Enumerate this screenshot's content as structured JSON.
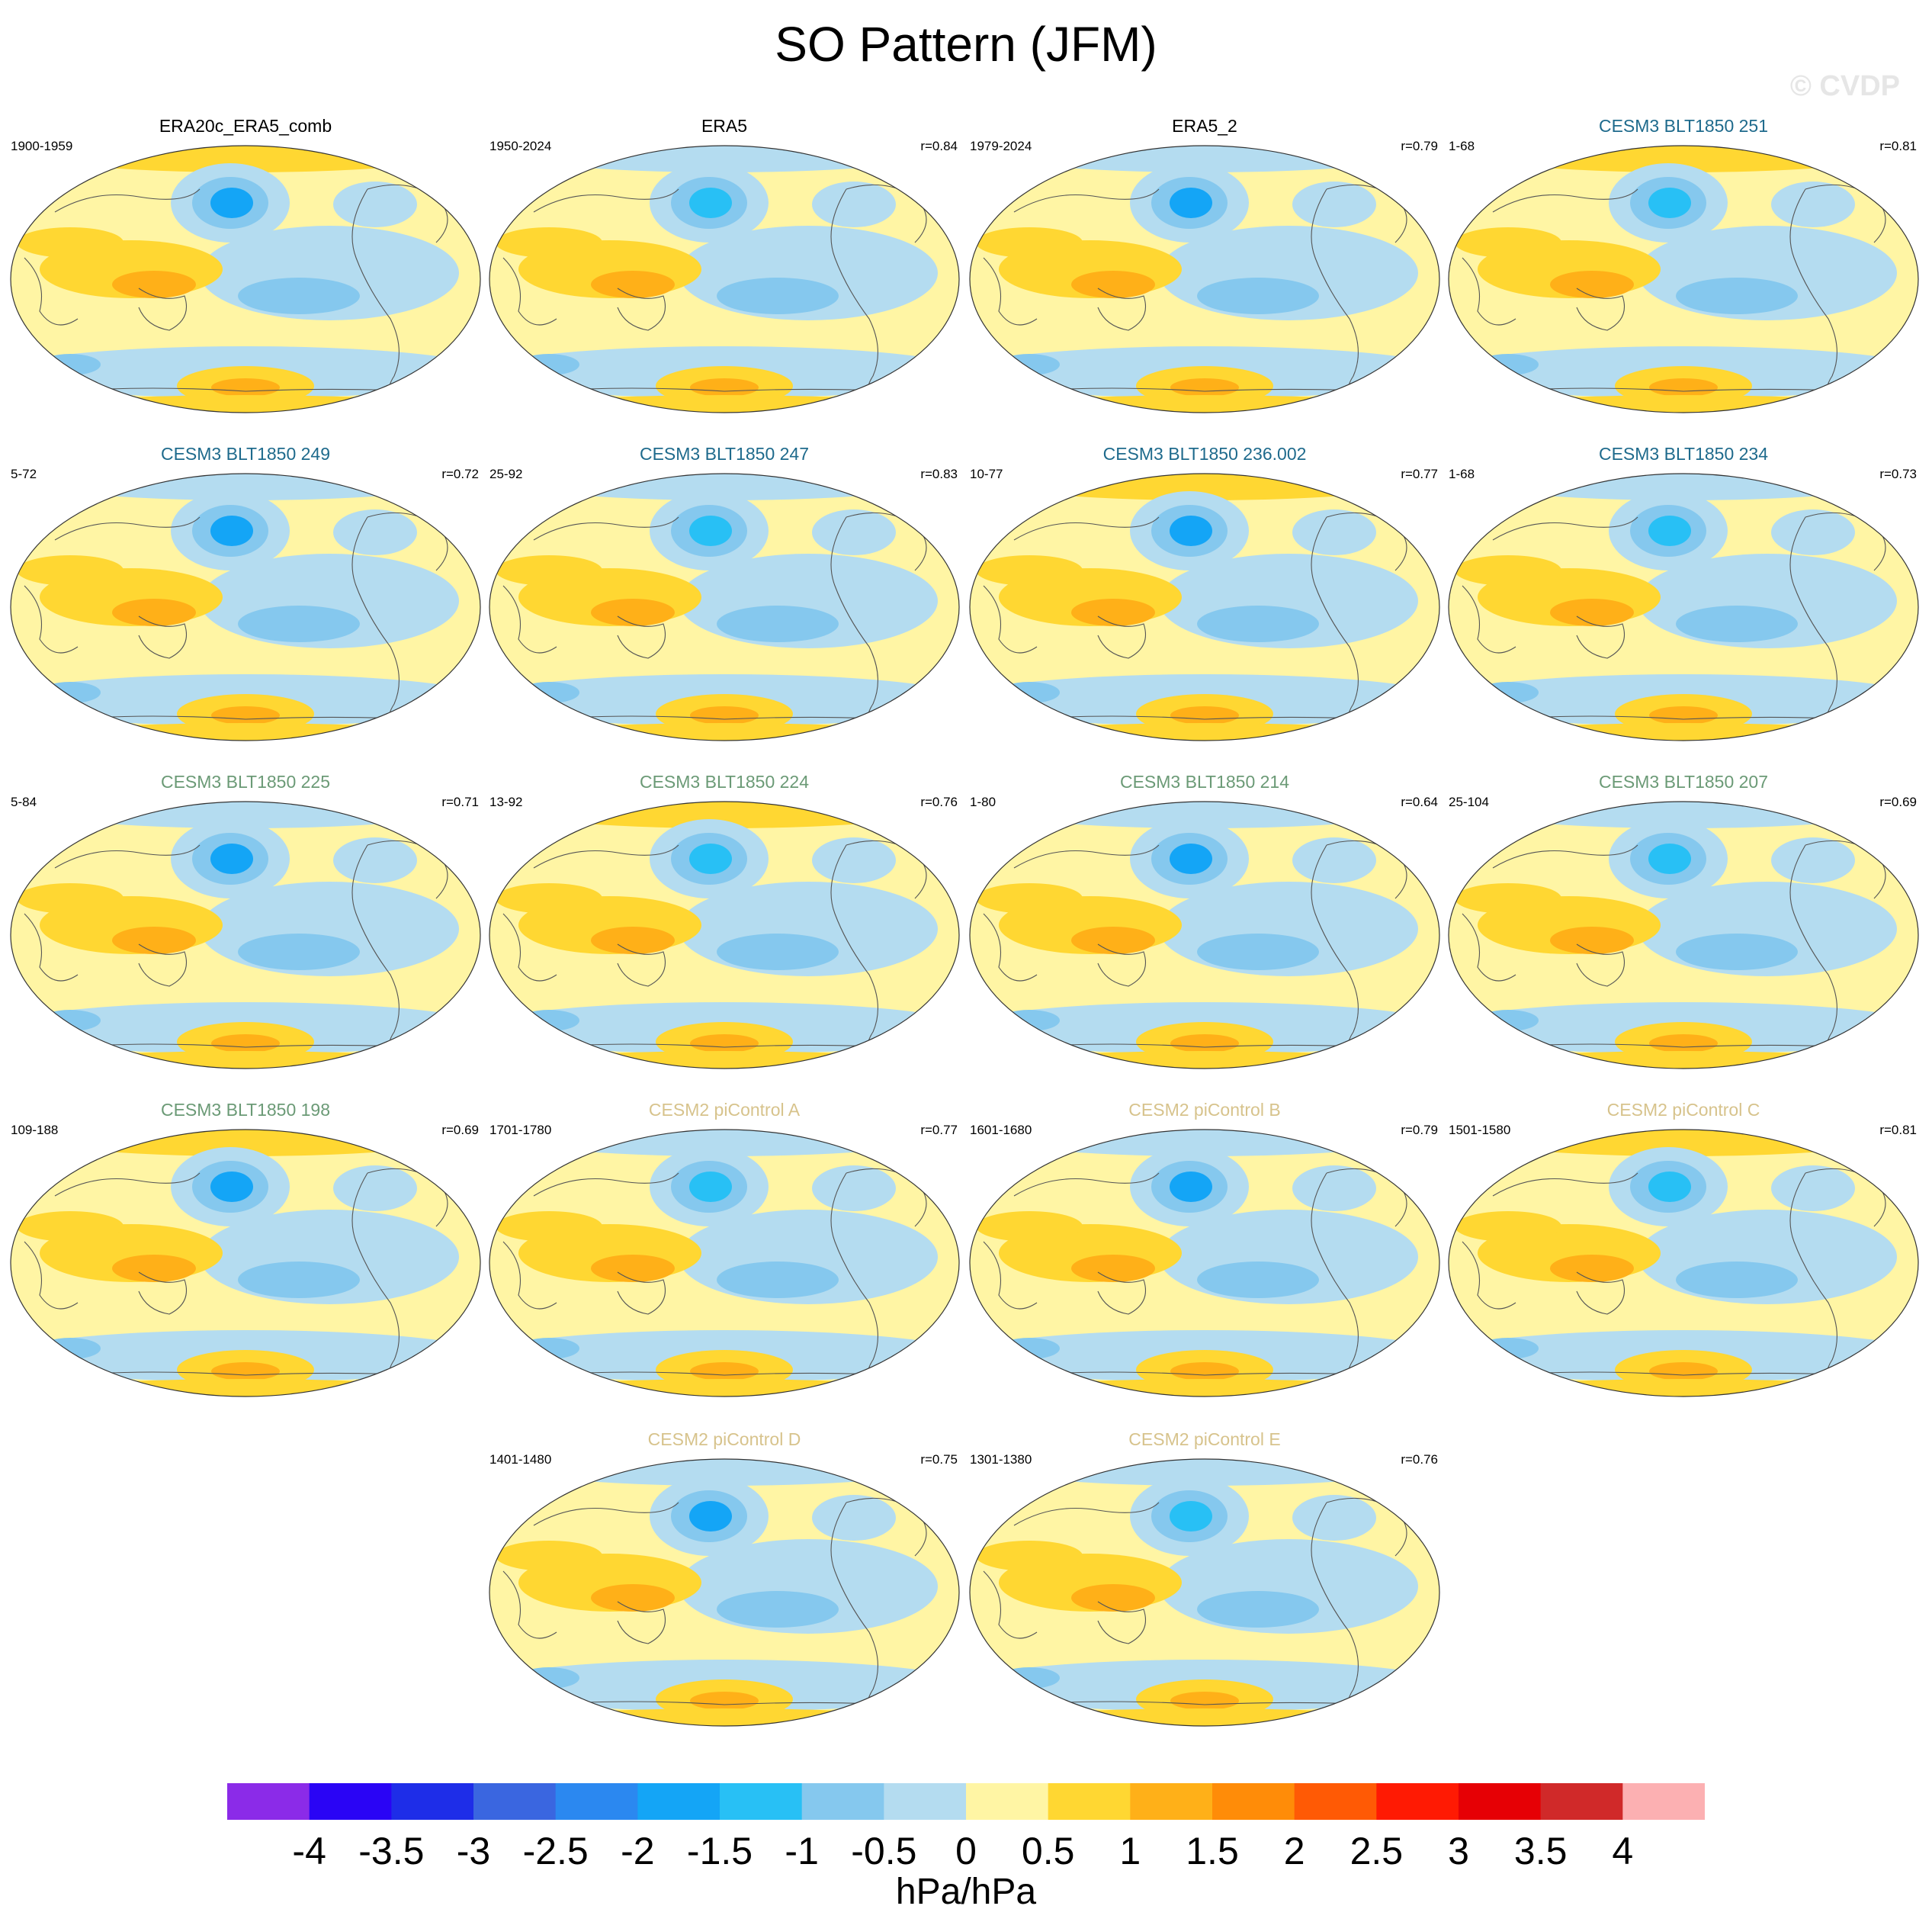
{
  "title": "SO Pattern (JFM)",
  "watermark": "© CVDP",
  "colors": {
    "obs_title": "#000000",
    "cesm3_a": "#1e6a8c",
    "cesm3_b": "#6b9a76",
    "cesm2": "#d7c38c"
  },
  "chart_data": {
    "type": "heatmap",
    "title": "SO Pattern (JFM)",
    "colorbar": {
      "units": "hPa/hPa",
      "levels": [
        "-4",
        "-3.5",
        "-3",
        "-2.5",
        "-2",
        "-1.5",
        "-1",
        "-0.5",
        "0",
        "0.5",
        "1",
        "1.5",
        "2",
        "2.5",
        "3",
        "3.5",
        "4"
      ],
      "colors": [
        "#8b2be8",
        "#2a04f5",
        "#1e2de8",
        "#3a66e0",
        "#2b88f0",
        "#14a5f6",
        "#28c0f5",
        "#85c8ee",
        "#b4dcf0",
        "#fff5a4",
        "#ffd732",
        "#ffb018",
        "#ff8c08",
        "#ff5a05",
        "#ff1a03",
        "#e60005",
        "#d02929",
        "#fcb0b2"
      ]
    },
    "panels": [
      {
        "title": "ERA20c_ERA5_comb",
        "years": "1900-1959",
        "r": "",
        "group": "obs"
      },
      {
        "title": "ERA5",
        "years": "1950-2024",
        "r": "r=0.84",
        "group": "obs"
      },
      {
        "title": "ERA5_2",
        "years": "1979-2024",
        "r": "r=0.79",
        "group": "obs"
      },
      {
        "title": "CESM3 BLT1850 251",
        "years": "1-68",
        "r": "r=0.81",
        "group": "cesm3_a"
      },
      {
        "title": "CESM3 BLT1850 249",
        "years": "5-72",
        "r": "r=0.72",
        "group": "cesm3_a"
      },
      {
        "title": "CESM3 BLT1850 247",
        "years": "25-92",
        "r": "r=0.83",
        "group": "cesm3_a"
      },
      {
        "title": "CESM3 BLT1850 236.002",
        "years": "10-77",
        "r": "r=0.77",
        "group": "cesm3_a"
      },
      {
        "title": "CESM3 BLT1850 234",
        "years": "1-68",
        "r": "r=0.73",
        "group": "cesm3_a"
      },
      {
        "title": "CESM3 BLT1850 225",
        "years": "5-84",
        "r": "r=0.71",
        "group": "cesm3_b"
      },
      {
        "title": "CESM3 BLT1850 224",
        "years": "13-92",
        "r": "r=0.76",
        "group": "cesm3_b"
      },
      {
        "title": "CESM3 BLT1850 214",
        "years": "1-80",
        "r": "r=0.64",
        "group": "cesm3_b"
      },
      {
        "title": "CESM3 BLT1850 207",
        "years": "25-104",
        "r": "r=0.69",
        "group": "cesm3_b"
      },
      {
        "title": "CESM3 BLT1850 198",
        "years": "109-188",
        "r": "r=0.69",
        "group": "cesm3_b"
      },
      {
        "title": "CESM2 piControl A",
        "years": "1701-1780",
        "r": "r=0.77",
        "group": "cesm2"
      },
      {
        "title": "CESM2 piControl B",
        "years": "1601-1680",
        "r": "r=0.79",
        "group": "cesm2"
      },
      {
        "title": "CESM2 piControl C",
        "years": "1501-1580",
        "r": "r=0.81",
        "group": "cesm2"
      },
      {
        "title": "CESM2 piControl D",
        "years": "1401-1480",
        "r": "r=0.75",
        "group": "cesm2"
      },
      {
        "title": "CESM2 piControl E",
        "years": "1301-1380",
        "r": "r=0.76",
        "group": "cesm2"
      }
    ]
  }
}
